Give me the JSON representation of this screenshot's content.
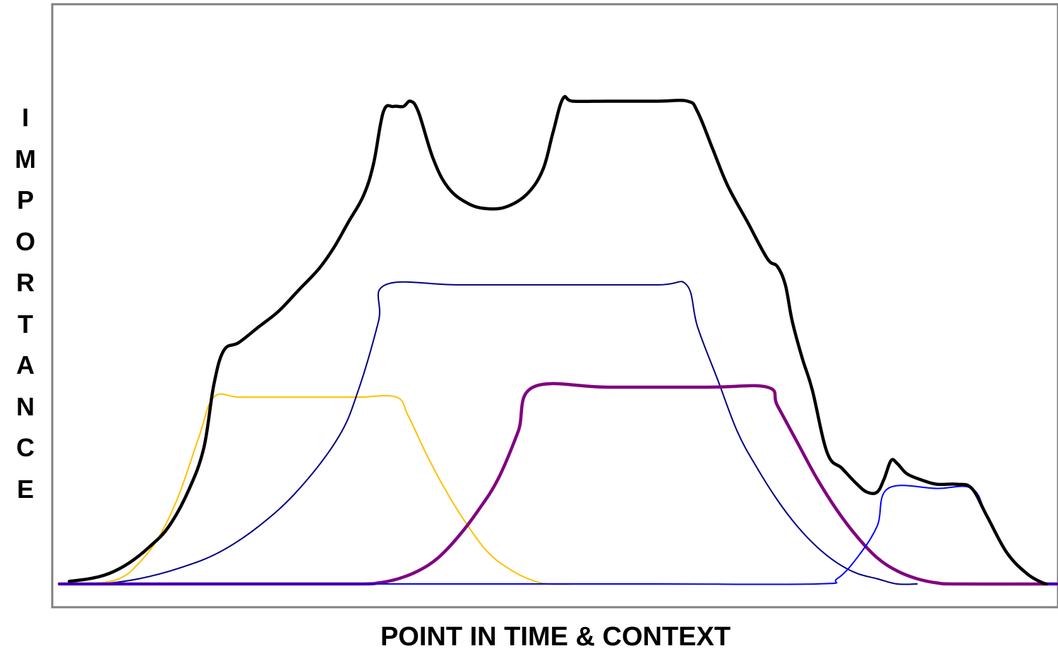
{
  "chart_data": {
    "type": "line",
    "title": "",
    "xlabel": "POINT IN TIME & CONTEXT",
    "ylabel": "IMPORTANCE",
    "xlim": [
      0,
      100
    ],
    "ylim": [
      0,
      100
    ],
    "grid": false,
    "legend": "none",
    "series": [
      {
        "color": "#FFC000",
        "weight": "thin",
        "points": [
          [
            0,
            0
          ],
          [
            3,
            0
          ],
          [
            6,
            1
          ],
          [
            8,
            4
          ],
          [
            10,
            9
          ],
          [
            12,
            17
          ],
          [
            14,
            28
          ],
          [
            15.5,
            35.6
          ],
          [
            18,
            35.6
          ],
          [
            22,
            35.6
          ],
          [
            26,
            35.6
          ],
          [
            30,
            35.6
          ],
          [
            33.8,
            35.6
          ],
          [
            35,
            32
          ],
          [
            37,
            24
          ],
          [
            39,
            17
          ],
          [
            41,
            11
          ],
          [
            43,
            6
          ],
          [
            45,
            3
          ],
          [
            47,
            1
          ],
          [
            49,
            0
          ],
          [
            52,
            0
          ]
        ]
      },
      {
        "color": "#000080",
        "weight": "thin",
        "points": [
          [
            0,
            0
          ],
          [
            4,
            0
          ],
          [
            8,
            1
          ],
          [
            12,
            3
          ],
          [
            16,
            6
          ],
          [
            20,
            11
          ],
          [
            24,
            18
          ],
          [
            28,
            28
          ],
          [
            30,
            37
          ],
          [
            32,
            50
          ],
          [
            32.7,
            57
          ],
          [
            40,
            57
          ],
          [
            50,
            57
          ],
          [
            60,
            57
          ],
          [
            62.9,
            57
          ],
          [
            64,
            49
          ],
          [
            66,
            39
          ],
          [
            68,
            29
          ],
          [
            70,
            22
          ],
          [
            72,
            16
          ],
          [
            74,
            11
          ],
          [
            76,
            7
          ],
          [
            78,
            4
          ],
          [
            80,
            2
          ],
          [
            82,
            1
          ],
          [
            84,
            0
          ],
          [
            86,
            0
          ]
        ]
      },
      {
        "color": "#800080",
        "weight": "thick",
        "points": [
          [
            0,
            0
          ],
          [
            10,
            0
          ],
          [
            20,
            0
          ],
          [
            30,
            0
          ],
          [
            32,
            0.2
          ],
          [
            34,
            1
          ],
          [
            36,
            2.5
          ],
          [
            38,
            5
          ],
          [
            40,
            9
          ],
          [
            42,
            14
          ],
          [
            44,
            20
          ],
          [
            46,
            29
          ],
          [
            47.5,
            37.5
          ],
          [
            55,
            37.5
          ],
          [
            65,
            37.5
          ],
          [
            71,
            37.5
          ],
          [
            72,
            34
          ],
          [
            74,
            27
          ],
          [
            76,
            20
          ],
          [
            78,
            14
          ],
          [
            80,
            9
          ],
          [
            82,
            5
          ],
          [
            84,
            2.5
          ],
          [
            86,
            1
          ],
          [
            88,
            0.2
          ],
          [
            90,
            0
          ],
          [
            100,
            0
          ]
        ]
      },
      {
        "color": "#0000FF",
        "weight": "thin",
        "points": [
          [
            0,
            0
          ],
          [
            20,
            0
          ],
          [
            40,
            0
          ],
          [
            60,
            0
          ],
          [
            76,
            0
          ],
          [
            78,
            1
          ],
          [
            80,
            5
          ],
          [
            82,
            11
          ],
          [
            83.1,
            18.2
          ],
          [
            88,
            18.2
          ],
          [
            91.5,
            18.2
          ],
          [
            93,
            13
          ],
          [
            95,
            6
          ],
          [
            97,
            2
          ],
          [
            98.5,
            0.3
          ],
          [
            100,
            0
          ]
        ]
      },
      {
        "color": "#000000",
        "weight": "thick",
        "points": [
          [
            1,
            0.5
          ],
          [
            3,
            1
          ],
          [
            5,
            2
          ],
          [
            7,
            4
          ],
          [
            9,
            7
          ],
          [
            11,
            11
          ],
          [
            13,
            18
          ],
          [
            14.5,
            26
          ],
          [
            15.5,
            38
          ],
          [
            16.5,
            44.5
          ],
          [
            18,
            46
          ],
          [
            20,
            49
          ],
          [
            22,
            52
          ],
          [
            24,
            56
          ],
          [
            26,
            60
          ],
          [
            27.5,
            64
          ],
          [
            29,
            69
          ],
          [
            30.5,
            74
          ],
          [
            31.5,
            80
          ],
          [
            32.5,
            90
          ],
          [
            33.5,
            91
          ],
          [
            34.5,
            91
          ],
          [
            35.2,
            92
          ],
          [
            36,
            90
          ],
          [
            37.5,
            81
          ],
          [
            39,
            75.5
          ],
          [
            41,
            72.5
          ],
          [
            43,
            71.5
          ],
          [
            45,
            72
          ],
          [
            47,
            74.5
          ],
          [
            48.5,
            79
          ],
          [
            49.5,
            86
          ],
          [
            50.5,
            92.5
          ],
          [
            51.5,
            92
          ],
          [
            55,
            92
          ],
          [
            60,
            92
          ],
          [
            63,
            92
          ],
          [
            64,
            90
          ],
          [
            65.5,
            83
          ],
          [
            67,
            76
          ],
          [
            69,
            69
          ],
          [
            71,
            62
          ],
          [
            72,
            60.5
          ],
          [
            72.8,
            57
          ],
          [
            73.5,
            50
          ],
          [
            74.5,
            43
          ],
          [
            75.5,
            37
          ],
          [
            77,
            25
          ],
          [
            78.5,
            22
          ],
          [
            80,
            19
          ],
          [
            81,
            17.5
          ],
          [
            82,
            17.5
          ],
          [
            82.7,
            20
          ],
          [
            83.4,
            23.5
          ],
          [
            84,
            23
          ],
          [
            85,
            21
          ],
          [
            86.5,
            19.8
          ],
          [
            88,
            19
          ],
          [
            90,
            19
          ],
          [
            91.5,
            18.2
          ],
          [
            93,
            13
          ],
          [
            95,
            6
          ],
          [
            97,
            2
          ],
          [
            98.5,
            0.3
          ],
          [
            99,
            0
          ]
        ]
      }
    ]
  }
}
